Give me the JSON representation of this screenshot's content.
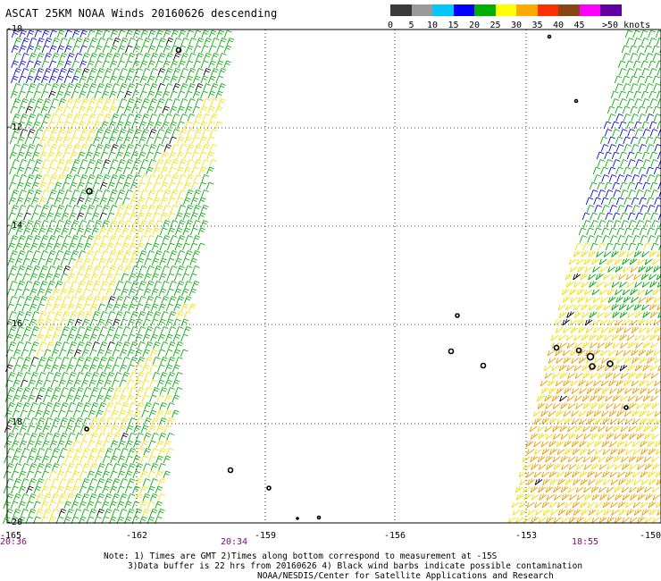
{
  "title": "ASCAT 25KM NOAA Winds 20160626 descending",
  "legend": {
    "labels": [
      "0",
      "5",
      "10",
      "15",
      "20",
      "25",
      "30",
      "35",
      "40",
      "45",
      ">50 knots"
    ],
    "colors": [
      "#3a3a3a",
      "#9a9a9a",
      "#00c8ff",
      "#0000ff",
      "#00b000",
      "#ffff00",
      "#ffaa00",
      "#ff3000",
      "#8b4513",
      "#ff00ff",
      "#6000a0"
    ]
  },
  "map": {
    "lat_labels": [
      "-10",
      "-12",
      "-14",
      "-16",
      "-18",
      "-20"
    ],
    "lon_labels": [
      "-165",
      "-162",
      "-159",
      "-156",
      "-153",
      "-150"
    ],
    "time_labels": [
      "20:36",
      "20:34",
      "18:55"
    ],
    "barb_colors": {
      "low": "#0000cc",
      "moderate": "#00a800",
      "high": "#f0e000",
      "strong": "#e8a000",
      "contaminated": "#000000"
    }
  },
  "notes": {
    "line1": "Note: 1) Times are GMT 2)Times along bottom correspond to measurement at -15S",
    "line2": "3)Data buffer is 22 hrs from 20160626 4) Black wind barbs indicate possible contamination",
    "line3": "NOAA/NESDIS/Center for Satellite Applications and Research"
  }
}
